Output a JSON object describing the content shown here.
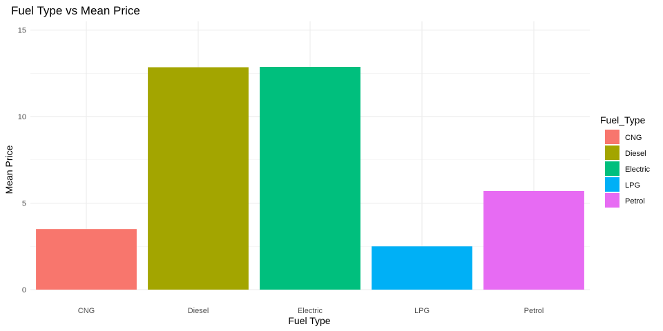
{
  "chart_data": {
    "type": "bar",
    "title": "Fuel Type vs Mean Price",
    "xlabel": "Fuel Type",
    "ylabel": "Mean Price",
    "categories": [
      "CNG",
      "Diesel",
      "Electric",
      "LPG",
      "Petrol"
    ],
    "values": [
      3.5,
      12.85,
      12.87,
      2.5,
      5.7
    ],
    "colors": [
      "#F8766D",
      "#A3A500",
      "#00BF7D",
      "#00B0F6",
      "#E76BF3"
    ],
    "ylim": [
      0,
      15.5
    ],
    "yticks": [
      0,
      5,
      10,
      15
    ],
    "grid": true,
    "legend": {
      "title": "Fuel_Type",
      "placement": "right",
      "entries": [
        "CNG",
        "Diesel",
        "Electric",
        "LPG",
        "Petrol"
      ]
    }
  }
}
